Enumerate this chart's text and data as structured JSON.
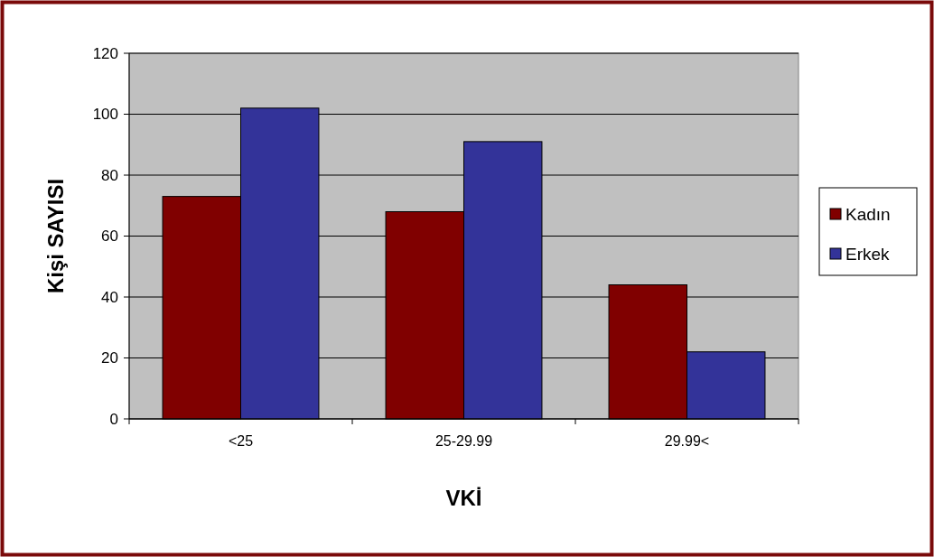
{
  "chart_data": {
    "type": "bar",
    "xlabel": "VKİ",
    "ylabel": "Kişi SAYISI",
    "categories": [
      "<25",
      "25-29.99",
      "29.99<"
    ],
    "series": [
      {
        "name": "Kadın",
        "color": "#800000",
        "values": [
          73,
          68,
          44
        ]
      },
      {
        "name": "Erkek",
        "color": "#333399",
        "values": [
          102,
          91,
          22
        ]
      }
    ],
    "ylim": [
      0,
      120
    ],
    "yticks": [
      0,
      20,
      40,
      60,
      80,
      100,
      120
    ],
    "grid": "y",
    "legend": "right"
  }
}
